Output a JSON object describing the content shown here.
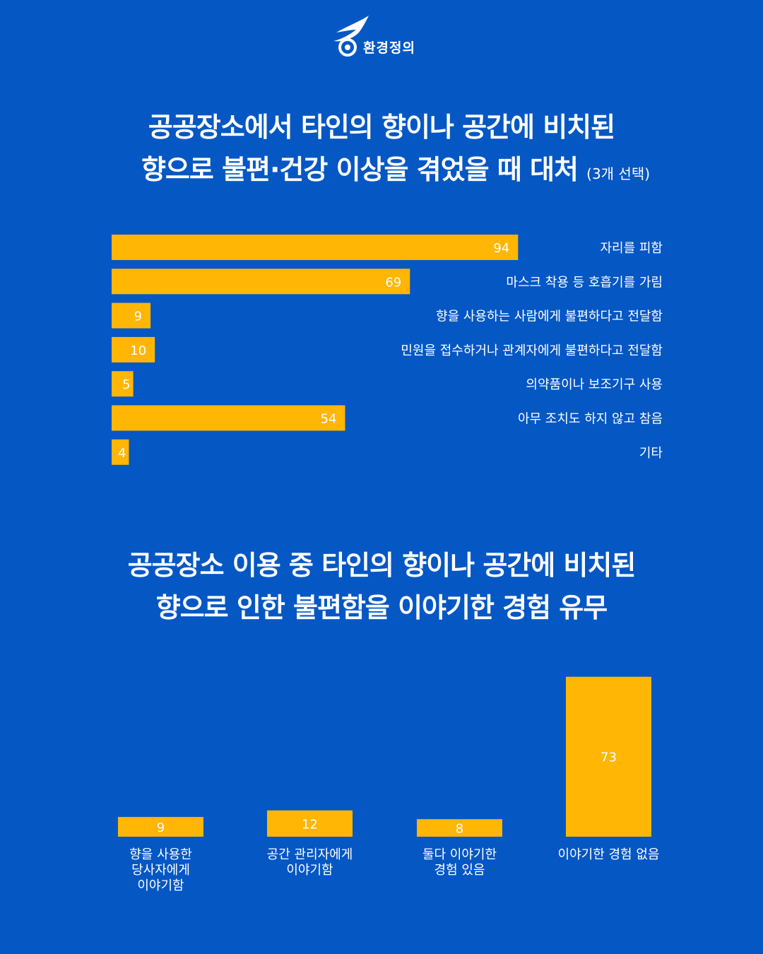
{
  "brand": {
    "name": "환경정의",
    "accent": "#ffb604",
    "background": "#0557c4"
  },
  "titles": {
    "chart1_line1": "공공장소에서 타인의 향이나 공간에 비치된",
    "chart1_line2": "향으로 불편·건강 이상을 겪었을 때 대처",
    "chart1_note": "(3개 선택)",
    "chart2_line1": "공공장소 이용 중 타인의 향이나 공간에 비치된",
    "chart2_line2": "향으로 인한 불편함을 이야기한 경험 유무"
  },
  "chart_data": [
    {
      "type": "bar",
      "orientation": "horizontal",
      "title": "공공장소에서 타인의 향이나 공간에 비치된 향으로 불편·건강 이상을 겪었을 때 대처 (3개 선택)",
      "categories": [
        "자리를 피함",
        "마스크 착용 등 호흡기를 가림",
        "향을 사용하는 사람에게 불편하다고 전달함",
        "민원을 접수하거나 관계자에게 불편하다고 전달함",
        "의약품이나 보조기구 사용",
        "아무 조치도 하지 않고 참음",
        "기타"
      ],
      "values": [
        94,
        69,
        9,
        10,
        5,
        54,
        4
      ],
      "color": "#ffb604"
    },
    {
      "type": "bar",
      "orientation": "vertical",
      "title": "공공장소 이용 중 타인의 향이나 공간에 비치된 향으로 인한 불편함을 이야기한 경험 유무",
      "categories": [
        [
          "향을 사용한",
          "당사자에게",
          "이야기함"
        ],
        [
          "공간 관리자에게",
          "이야기함"
        ],
        [
          "둘다 이야기한",
          "경험 있음"
        ],
        [
          "이야기한 경험 없음"
        ]
      ],
      "values": [
        9,
        12,
        8,
        73
      ],
      "color": "#ffb604"
    }
  ]
}
